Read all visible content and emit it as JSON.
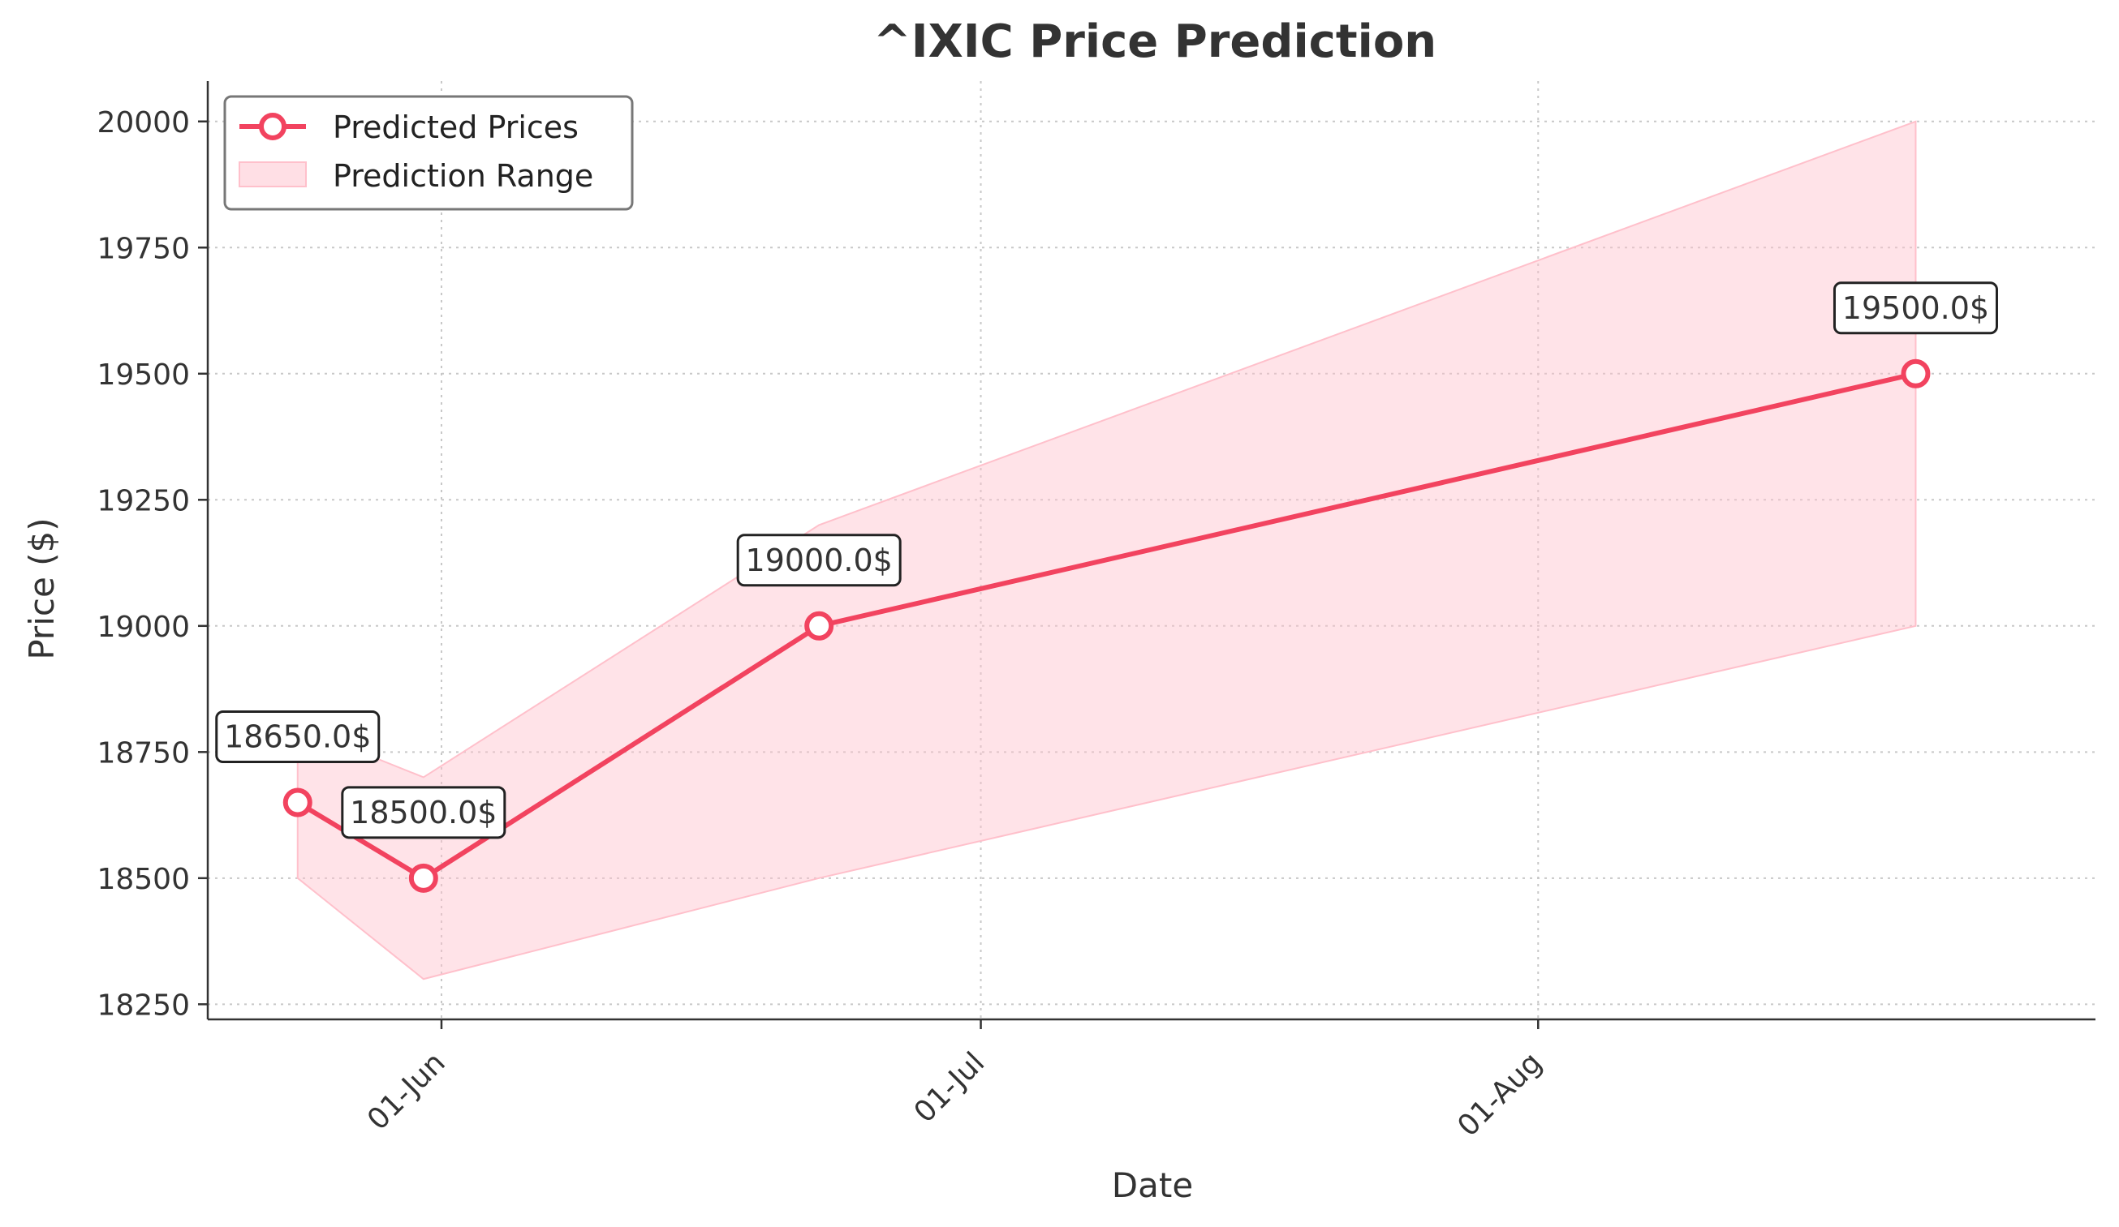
{
  "chart_data": {
    "type": "line",
    "title": "^IXIC Price Prediction",
    "xlabel": "Date",
    "ylabel": "Price ($)",
    "x_ticks": [
      "01-Jun",
      "01-Jul",
      "01-Aug"
    ],
    "y_ticks": [
      18250,
      18500,
      18750,
      19000,
      19250,
      19500,
      19750,
      20000
    ],
    "ylim": [
      18220,
      20080
    ],
    "grid": true,
    "legend_position": "top-left",
    "series": [
      {
        "name": "Predicted Prices",
        "color": "#f2435f",
        "points": [
          {
            "x": "2025-05-24",
            "y": 18650,
            "label": "18650.0$"
          },
          {
            "x": "2025-05-31",
            "y": 18500,
            "label": "18500.0$"
          },
          {
            "x": "2025-06-22",
            "y": 19000,
            "label": "19000.0$"
          },
          {
            "x": "2025-08-22",
            "y": 19500,
            "label": "19500.0$"
          }
        ]
      }
    ],
    "band": {
      "name": "Prediction Range",
      "color": "#ffc0cb",
      "points": [
        {
          "x": "2025-05-24",
          "low": 18500,
          "high": 18800
        },
        {
          "x": "2025-05-31",
          "low": 18300,
          "high": 18700
        },
        {
          "x": "2025-06-22",
          "low": 18500,
          "high": 19200
        },
        {
          "x": "2025-08-22",
          "low": 19000,
          "high": 20000
        }
      ]
    },
    "x_range": [
      "2025-05-19",
      "2025-09-01"
    ]
  }
}
